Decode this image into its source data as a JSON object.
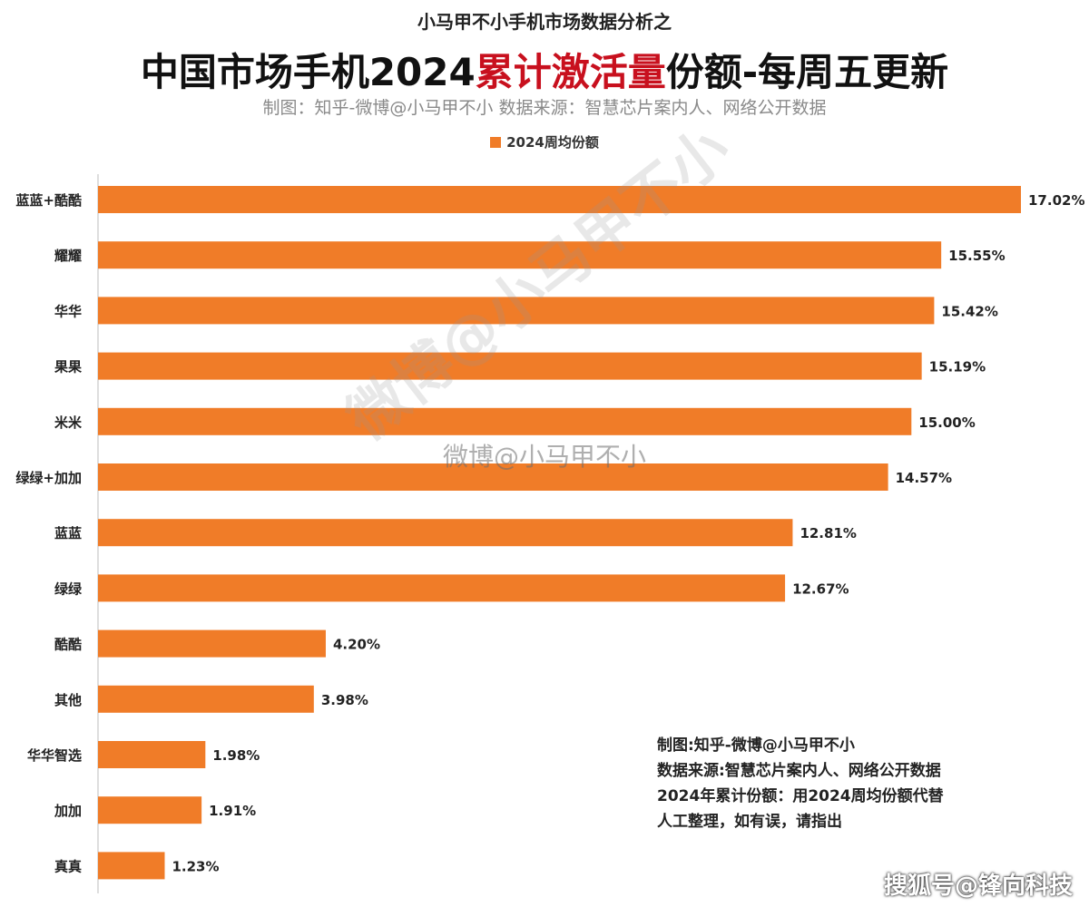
{
  "header": {
    "top_title": "小马甲不小手机市场数据分析之",
    "main_title_pre": "中国市场手机2024",
    "main_title_hl": "累计激活量",
    "main_title_post": "份额-每周五更新",
    "credit": "制图：知乎-微博@小马甲不小    数据来源：智慧芯片案内人、网络公开数据"
  },
  "colors": {
    "bar": "#f07c28",
    "highlight": "#c8101e"
  },
  "notes": [
    "制图:知乎-微博@小马甲不小",
    "数据来源:智慧芯片案内人、网络公开数据",
    "2024年累计份额：用2024周均份额代替",
    "人工整理，如有误，请指出"
  ],
  "watermarks": {
    "diagonal": "微博@小马甲不小",
    "weibo": "微博@小马甲不小",
    "sohu": "搜狐号@锋向科技"
  },
  "chart_data": {
    "type": "bar",
    "orientation": "horizontal",
    "legend": "2024周均份额",
    "legend_position": "top",
    "categories": [
      "蓝蓝+酷酷",
      "耀耀",
      "华华",
      "果果",
      "米米",
      "绿绿+加加",
      "蓝蓝",
      "绿绿",
      "酷酷",
      "其他",
      "华华智选",
      "加加",
      "真真"
    ],
    "values": [
      17.02,
      15.55,
      15.42,
      15.19,
      15.0,
      14.57,
      12.81,
      12.67,
      4.2,
      3.98,
      1.98,
      1.91,
      1.23
    ],
    "labels": [
      "17.02%",
      "15.55%",
      "15.42%",
      "15.19%",
      "15.00%",
      "14.57%",
      "12.81%",
      "12.67%",
      "4.20%",
      "3.98%",
      "1.98%",
      "1.91%",
      "1.23%"
    ],
    "xlim": [
      0,
      17.02
    ],
    "grid": false
  }
}
